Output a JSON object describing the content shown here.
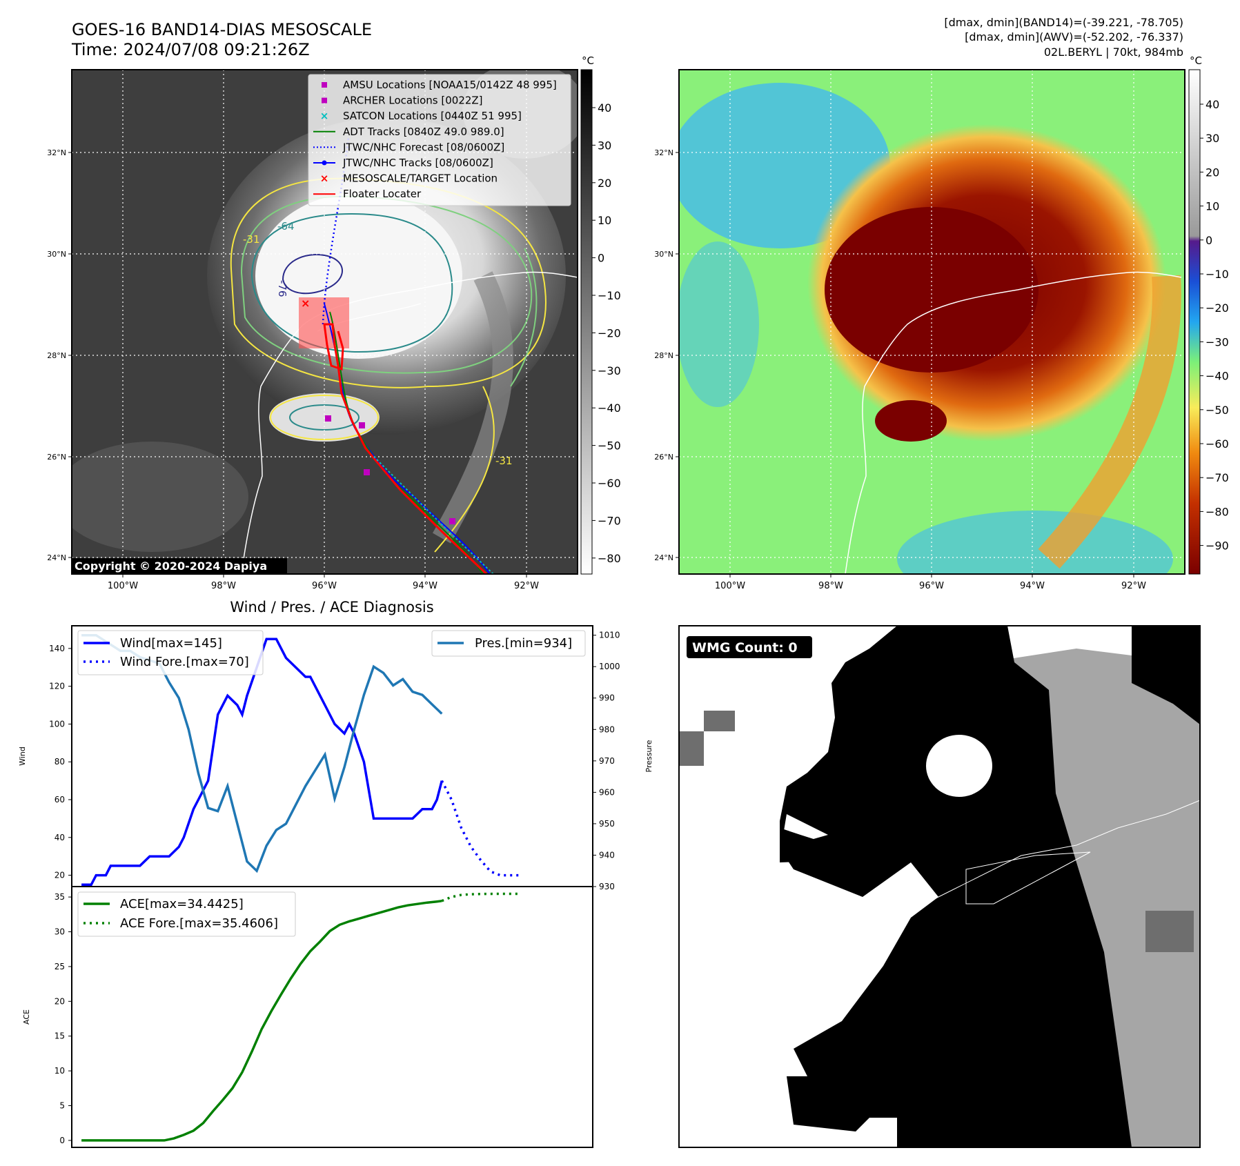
{
  "header": {
    "title_line1": "GOES-16 BAND14-DIAS MESOSCALE",
    "title_line2": "Time: 2024/07/08 09:21:26Z",
    "stats_line1": "[dmax, dmin](BAND14)=(-39.221, -78.705)",
    "stats_line2": "[dmax, dmin](AWV)=(-52.202, -76.337)",
    "stats_line3": "02L.BERYL | 70kt, 984mb"
  },
  "ir_panel": {
    "copyright": "Copyright © 2020-2024 Dapiya",
    "lon_ticks": [
      "100°W",
      "98°W",
      "96°W",
      "94°W",
      "92°W"
    ],
    "lat_ticks": [
      "32°N",
      "30°N",
      "28°N",
      "26°N",
      "24°N"
    ],
    "colorbar_unit": "°C",
    "colorbar_ticks": [
      "40",
      "30",
      "20",
      "10",
      "0",
      "−10",
      "−20",
      "−30",
      "−40",
      "−50",
      "−60",
      "−70",
      "−80"
    ],
    "contour_labels": [
      "-64",
      "-76",
      "-31",
      "-31"
    ],
    "legend": [
      {
        "label": "AMSU Locations [NOAA15/0142Z 48 995]",
        "color": "#bf00bf",
        "marker": "square"
      },
      {
        "label": "ARCHER Locations [0022Z]",
        "color": "#bf00bf",
        "marker": "square"
      },
      {
        "label": "SATCON Locations [0440Z 51 995]",
        "color": "#00bfbf",
        "marker": "x"
      },
      {
        "label": "ADT Tracks [0840Z 49.0 989.0]",
        "color": "#008000",
        "marker": "line"
      },
      {
        "label": "JTWC/NHC Forecast [08/0600Z]",
        "color": "#0000ff",
        "marker": "dotted"
      },
      {
        "label": "JTWC/NHC Tracks [08/0600Z]",
        "color": "#0000ff",
        "marker": "line-dot"
      },
      {
        "label": "MESOSCALE/TARGET Location",
        "color": "#ff0000",
        "marker": "x"
      },
      {
        "label": "Floater Locater",
        "color": "#ff0000",
        "marker": "line"
      }
    ]
  },
  "awv_panel": {
    "lon_ticks": [
      "100°W",
      "98°W",
      "96°W",
      "94°W",
      "92°W"
    ],
    "lat_ticks": [
      "32°N",
      "30°N",
      "28°N",
      "26°N",
      "24°N"
    ],
    "colorbar_unit": "°C",
    "colorbar_ticks": [
      "40",
      "30",
      "20",
      "10",
      "0",
      "−10",
      "−20",
      "−30",
      "−40",
      "−50",
      "−60",
      "−70",
      "−80",
      "−90"
    ]
  },
  "wmg_panel": {
    "label": "WMG Count: 0"
  },
  "chart_data": [
    {
      "type": "line",
      "title": "Wind / Pres. / ACE Diagnosis",
      "ylabel": "Wind",
      "ylabel_right": "Pressure",
      "ylim": [
        14,
        152
      ],
      "ylim_right": [
        930,
        1013
      ],
      "xlim": [
        -2,
        105
      ],
      "y_ticks": [
        "140",
        "120",
        "100",
        "80",
        "60",
        "40",
        "20"
      ],
      "y_ticks_right": [
        "1010",
        "1000",
        "990",
        "980",
        "970",
        "960",
        "950",
        "940",
        "930"
      ],
      "legend_position": "top-left",
      "legend_right_position": "top-right",
      "series": [
        {
          "name": "Wind[max=145]",
          "color": "#0000ff",
          "style": "solid",
          "x": [
            0,
            2,
            3,
            4,
            5,
            6,
            8,
            10,
            12,
            14,
            16,
            18,
            20,
            21,
            23,
            24,
            26,
            28,
            30,
            32,
            33,
            34,
            36,
            38,
            40,
            42,
            44,
            46,
            47,
            48,
            50,
            52,
            54,
            55,
            56,
            58,
            60,
            62,
            64,
            66,
            68,
            70,
            72,
            73,
            74
          ],
          "values": [
            15,
            15,
            20,
            20,
            20,
            25,
            25,
            25,
            25,
            30,
            30,
            30,
            35,
            40,
            55,
            60,
            70,
            105,
            115,
            110,
            105,
            115,
            130,
            145,
            145,
            135,
            130,
            125,
            125,
            120,
            110,
            100,
            95,
            100,
            95,
            80,
            50,
            50,
            50,
            50,
            50,
            55,
            55,
            60,
            70
          ]
        },
        {
          "name": "Wind Fore.[max=70]",
          "color": "#0000ff",
          "style": "dotted",
          "x": [
            74,
            76,
            78,
            80,
            82,
            84,
            86,
            88,
            90
          ],
          "values": [
            70,
            60,
            45,
            35,
            28,
            22,
            20,
            20,
            20
          ]
        },
        {
          "name": "Pres.[min=934]",
          "color": "#1f77b4",
          "style": "solid",
          "axis": "right",
          "x": [
            0,
            3,
            6,
            8,
            10,
            12,
            14,
            16,
            18,
            20,
            22,
            24,
            26,
            28,
            30,
            32,
            34,
            36,
            38,
            40,
            42,
            44,
            46,
            48,
            50,
            52,
            54,
            56,
            58,
            60,
            62,
            64,
            66,
            68,
            70,
            72,
            74
          ],
          "values": [
            1010,
            1010,
            1007,
            1005,
            1005,
            1003,
            1002,
            1001,
            995,
            990,
            980,
            966,
            955,
            954,
            962,
            950,
            938,
            935,
            943,
            948,
            950,
            956,
            962,
            967,
            972,
            958,
            968,
            980,
            991,
            1000,
            998,
            994,
            996,
            992,
            991,
            988,
            985
          ]
        }
      ]
    },
    {
      "type": "line",
      "ylabel": "ACE",
      "ylim": [
        -1,
        36.5
      ],
      "xlim": [
        -2,
        105
      ],
      "y_ticks": [
        "35",
        "30",
        "25",
        "20",
        "15",
        "10",
        "5",
        "0"
      ],
      "legend_position": "top-left",
      "series": [
        {
          "name": "ACE[max=34.4425]",
          "color": "#008000",
          "style": "solid",
          "x": [
            0,
            6,
            12,
            17,
            19,
            21,
            23,
            25,
            27,
            29,
            31,
            33,
            35,
            37,
            39,
            41,
            43,
            45,
            47,
            49,
            51,
            53,
            55,
            57,
            59,
            61,
            63,
            65,
            67,
            69,
            71,
            73,
            74
          ],
          "values": [
            0,
            0,
            0,
            0,
            0.3,
            0.8,
            1.4,
            2.5,
            4.2,
            5.8,
            7.5,
            9.8,
            12.8,
            16.0,
            18.6,
            21.0,
            23.3,
            25.4,
            27.2,
            28.6,
            30.1,
            31.0,
            31.5,
            31.9,
            32.3,
            32.7,
            33.1,
            33.5,
            33.8,
            34.0,
            34.2,
            34.35,
            34.44
          ]
        },
        {
          "name": "ACE Fore.[max=35.4606]",
          "color": "#008000",
          "style": "dotted",
          "x": [
            74,
            76,
            78,
            80,
            83,
            86,
            90
          ],
          "values": [
            34.44,
            35.0,
            35.3,
            35.4,
            35.45,
            35.46,
            35.46
          ]
        }
      ]
    }
  ]
}
